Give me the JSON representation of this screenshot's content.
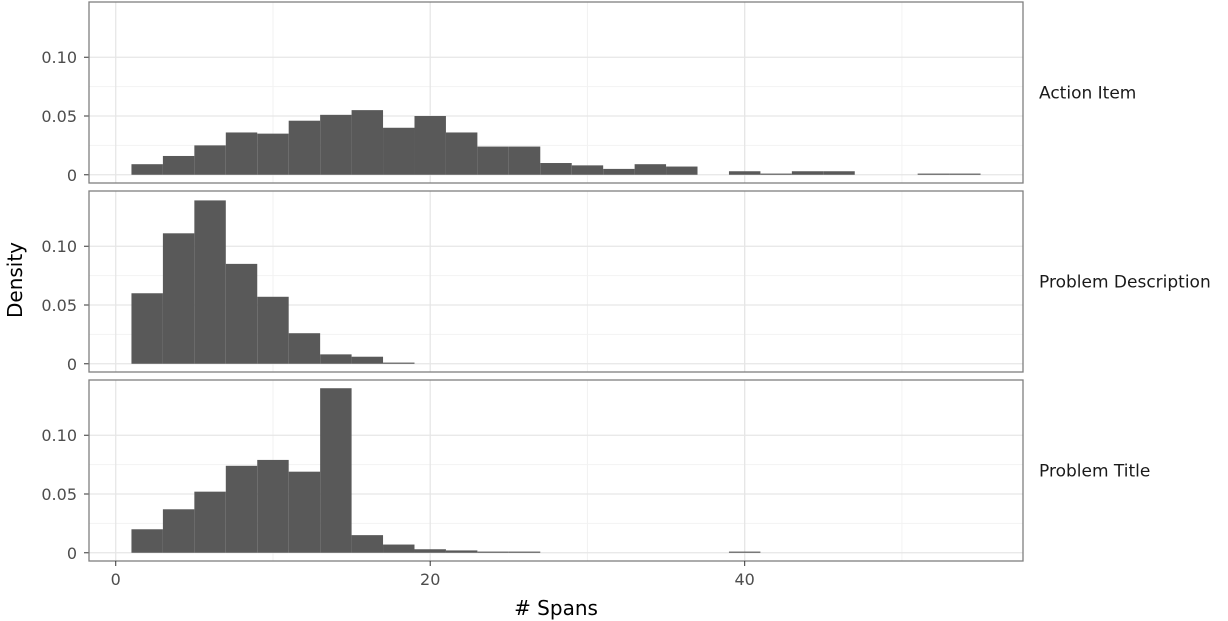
{
  "chart_data": {
    "type": "bar",
    "xlabel": "# Spans",
    "ylabel": "Density",
    "xlim": [
      -1.7,
      57.7
    ],
    "ylim": [
      -0.007,
      0.147
    ],
    "x_ticks": [
      0,
      20,
      40
    ],
    "x_tick_labels": [
      "0",
      "20",
      "40"
    ],
    "y_ticks": [
      0,
      0.05,
      0.1
    ],
    "y_tick_labels": [
      "0",
      "0.05",
      "0.10"
    ],
    "bin_width": 2,
    "bin_starts": [
      1,
      3,
      5,
      7,
      9,
      11,
      13,
      15,
      17,
      19,
      21,
      23,
      25,
      27,
      29,
      31,
      33,
      35,
      37,
      39,
      41,
      43,
      45,
      47,
      49,
      51,
      53
    ],
    "grid": true,
    "facets": [
      {
        "name": "Action Item",
        "values": [
          0.009,
          0.016,
          0.025,
          0.036,
          0.035,
          0.046,
          0.051,
          0.055,
          0.04,
          0.05,
          0.036,
          0.024,
          0.024,
          0.01,
          0.008,
          0.005,
          0.009,
          0.007,
          0.0,
          0.003,
          0.001,
          0.003,
          0.003,
          0.0,
          0.0,
          0.001,
          0.001
        ]
      },
      {
        "name": "Problem Description",
        "values": [
          0.06,
          0.111,
          0.139,
          0.085,
          0.057,
          0.026,
          0.008,
          0.006,
          0.001,
          0.0,
          0.0,
          0.0,
          0.0,
          0.0,
          0.0,
          0.0,
          0.0,
          0.0,
          0.0,
          0.0,
          0.0,
          0.0,
          0.0,
          0.0,
          0.0,
          0.0,
          0.0
        ]
      },
      {
        "name": "Problem Title",
        "values": [
          0.02,
          0.037,
          0.052,
          0.074,
          0.079,
          0.069,
          0.14,
          0.015,
          0.007,
          0.003,
          0.002,
          0.001,
          0.001,
          0.0,
          0.0,
          0.0,
          0.0,
          0.0,
          0.0,
          0.001,
          0.0,
          0.0,
          0.0,
          0.0,
          0.0,
          0.0,
          0.0
        ]
      }
    ],
    "colors": {
      "bar": "#595959",
      "panel_border": "#7f7f7f",
      "grid_major": "#e6e6e6",
      "grid_minor": "#f2f2f2"
    }
  }
}
